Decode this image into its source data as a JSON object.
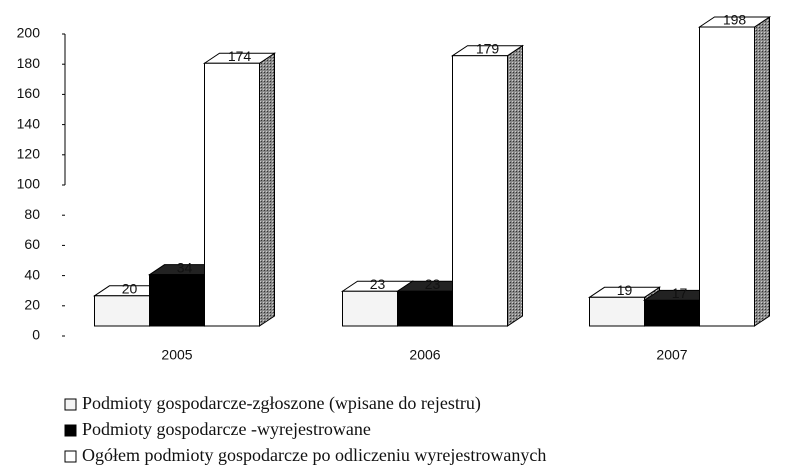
{
  "chart_data": {
    "type": "bar3d",
    "categories": [
      "2005",
      "2006",
      "2007"
    ],
    "series": [
      {
        "name": "Podmioty gospodarcze-zgłoszone (wpisane do rejestru)",
        "color": "#f4f4f4",
        "values": [
          20,
          23,
          19
        ]
      },
      {
        "name": "Podmioty gospodarcze -wyrejestrowane",
        "color": "#000000",
        "values": [
          34,
          23,
          17
        ]
      },
      {
        "name": "Ogółem podmioty gospodarcze po odliczeniu wyrejestrowanych",
        "color": "#ffffff",
        "values": [
          174,
          179,
          198
        ]
      }
    ],
    "ylim": [
      0,
      200
    ],
    "yticks": [
      0,
      20,
      40,
      60,
      80,
      100,
      120,
      140,
      160,
      180,
      200
    ]
  }
}
